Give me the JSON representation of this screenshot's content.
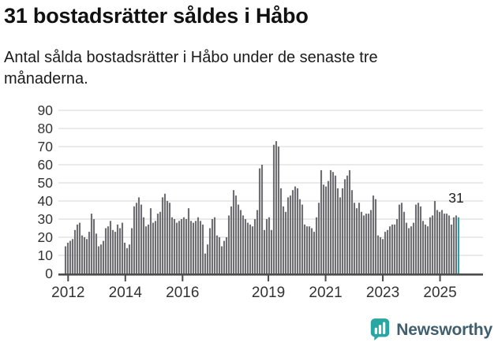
{
  "header": {
    "title": "31 bostadsrätter såldes i Håbo",
    "subtitle": "Antal sålda bostadsrätter i Håbo under de senaste tre månaderna."
  },
  "chart_data": {
    "type": "bar",
    "title": "31 bostadsrätter såldes i Håbo",
    "ylabel": "Antal sålda bostadsrätter",
    "start": "2012-01",
    "frequency": "monthly",
    "values": [
      15,
      17,
      18,
      19,
      24,
      27,
      28,
      21,
      20,
      19,
      23,
      33,
      30,
      22,
      15,
      16,
      18,
      25,
      26,
      29,
      24,
      23,
      27,
      25,
      28,
      17,
      14,
      16,
      25,
      37,
      39,
      42,
      38,
      31,
      26,
      27,
      36,
      28,
      29,
      33,
      34,
      42,
      44,
      40,
      39,
      31,
      30,
      28,
      29,
      30,
      31,
      30,
      36,
      29,
      28,
      29,
      31,
      29,
      27,
      11,
      16,
      25,
      30,
      31,
      21,
      20,
      15,
      18,
      20,
      32,
      37,
      46,
      43,
      38,
      35,
      32,
      30,
      28,
      27,
      26,
      30,
      35,
      58,
      60,
      24,
      30,
      31,
      24,
      71,
      73,
      70,
      47,
      37,
      34,
      42,
      43,
      46,
      48,
      47,
      41,
      38,
      27,
      26,
      26,
      25,
      23,
      31,
      39,
      57,
      49,
      48,
      51,
      57,
      56,
      54,
      47,
      42,
      47,
      52,
      54,
      57,
      46,
      39,
      36,
      39,
      34,
      32,
      33,
      33,
      35,
      43,
      41,
      21,
      20,
      19,
      23,
      24,
      26,
      27,
      27,
      30,
      38,
      39,
      34,
      28,
      25,
      26,
      28,
      38,
      39,
      37,
      29,
      27,
      26,
      31,
      32,
      40,
      35,
      34,
      35,
      33,
      33,
      32,
      27,
      31,
      32,
      31
    ],
    "last_value": 31,
    "annotation_label": "31",
    "y_ticks": [
      0,
      10,
      20,
      30,
      40,
      50,
      60,
      70,
      80,
      90
    ],
    "ylim": [
      0,
      90
    ],
    "x_tick_years": [
      2012,
      2014,
      2016,
      2019,
      2021,
      2023,
      2025
    ],
    "grid": true,
    "legend": "none",
    "bar_color": "#6f6f73",
    "highlight_color": "#29a5a2",
    "axis_color": "#4c4c4c",
    "grid_color": "#e3e3e3",
    "tick_label_color": "#333333",
    "annotation_color": "#222222"
  },
  "branding": {
    "logo_text": "Newsworthy",
    "logo_icon": "newsworthy-bar-chart-bubble-icon",
    "icon_color": "#29a5a2",
    "text_color": "#3f5e6e"
  }
}
